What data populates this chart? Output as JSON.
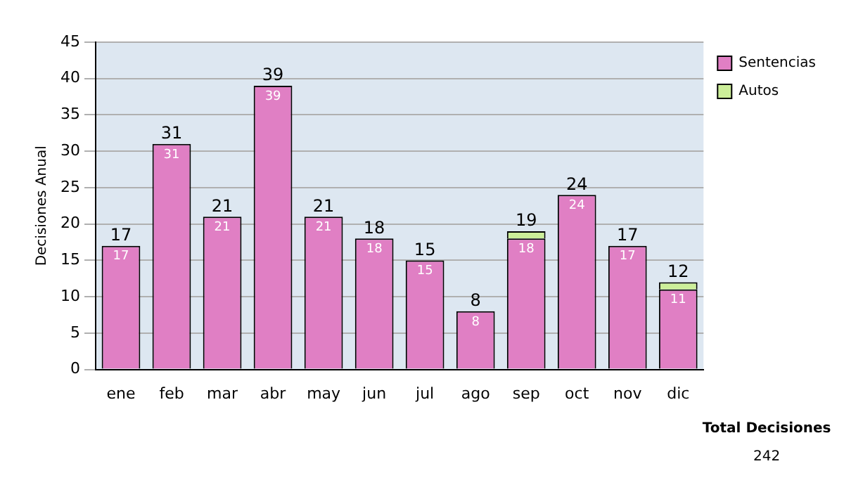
{
  "chart_data": {
    "type": "bar",
    "stacked": true,
    "ylabel": "Decisiones Anual",
    "categories": [
      "ene",
      "feb",
      "mar",
      "abr",
      "may",
      "jun",
      "jul",
      "ago",
      "sep",
      "oct",
      "nov",
      "dic"
    ],
    "series": [
      {
        "name": "Sentencias",
        "color": "#e07fc4",
        "values": [
          17,
          31,
          21,
          39,
          21,
          18,
          15,
          8,
          18,
          24,
          17,
          11
        ],
        "value_labels": [
          "17",
          "31",
          "21",
          "39",
          "21",
          "18",
          "15",
          "8",
          "18",
          "24",
          "17",
          "11"
        ]
      },
      {
        "name": "Autos",
        "color": "#ccee99",
        "values": [
          null,
          null,
          null,
          null,
          null,
          null,
          null,
          null,
          1,
          null,
          null,
          1
        ]
      }
    ],
    "totals": [
      "17",
      "31",
      "21",
      "39",
      "21",
      "18",
      "15",
      "8",
      "19",
      "24",
      "17",
      "12"
    ],
    "ylim": [
      0,
      45
    ],
    "yticks": [
      0,
      5,
      10,
      15,
      20,
      25,
      30,
      35,
      40,
      45
    ],
    "grid": "y",
    "legend": "right",
    "annotations": [
      "Total Decisiones",
      "242"
    ]
  }
}
